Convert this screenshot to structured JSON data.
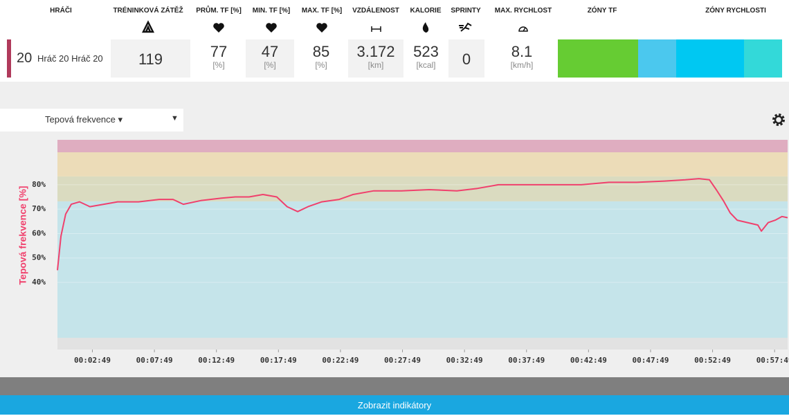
{
  "table": {
    "headers": [
      "HRÁČI",
      "TRÉNINKOVÁ ZÁTĚŽ",
      "PRŮM. TF [%]",
      "MIN. TF [%]",
      "MAX. TF [%]",
      "VZDÁLENOST",
      "KALORIE",
      "SPRINTY",
      "MAX. RYCHLOST",
      "ZÓNY TF",
      "ZÓNY RYCHLOSTI"
    ],
    "row": {
      "number": "20",
      "player": "Hráč 20 Hráč 20",
      "cells": [
        {
          "value": "119"
        },
        {
          "value": "77",
          "unit": "[%]"
        },
        {
          "value": "47",
          "unit": "[%]"
        },
        {
          "value": "85",
          "unit": "[%]"
        },
        {
          "value": "3.172",
          "unit": "[km]"
        },
        {
          "value": "523",
          "unit": "[kcal]"
        },
        {
          "value": "0"
        },
        {
          "value": "8.1",
          "unit": "[km/h]"
        }
      ]
    }
  },
  "metric_selector": "Tepová frekvence",
  "button": "Zobrazit indikátory",
  "chart_data": {
    "type": "line",
    "ylabel": "Tepová frekvence [%]",
    "xlim": [
      0,
      3532
    ],
    "ylim": [
      12.5,
      98.4
    ],
    "xticks": [
      {
        "value": 169,
        "label": "00:02:49"
      },
      {
        "value": 469,
        "label": "00:07:49"
      },
      {
        "value": 769,
        "label": "00:12:49"
      },
      {
        "value": 1069,
        "label": "00:17:49"
      },
      {
        "value": 1369,
        "label": "00:22:49"
      },
      {
        "value": 1669,
        "label": "00:27:49"
      },
      {
        "value": 1969,
        "label": "00:32:49"
      },
      {
        "value": 2269,
        "label": "00:37:49"
      },
      {
        "value": 2569,
        "label": "00:42:49"
      },
      {
        "value": 2869,
        "label": "00:47:49"
      },
      {
        "value": 3169,
        "label": "00:52:49"
      },
      {
        "value": 3469,
        "label": "00:57:49"
      }
    ],
    "yticks": [
      {
        "value": 40,
        "label": "40%"
      },
      {
        "value": 50,
        "label": "50%"
      },
      {
        "value": 60,
        "label": "60%"
      },
      {
        "value": 70,
        "label": "70%"
      },
      {
        "value": 80,
        "label": "80%"
      }
    ],
    "bands": [
      {
        "from": 12.5,
        "to": 17.3,
        "color": "#e2e2e2"
      },
      {
        "from": 17.3,
        "to": 73.2,
        "color": "#c5e4ea"
      },
      {
        "from": 73.2,
        "to": 83.4,
        "color": "#dadbc0"
      },
      {
        "from": 83.4,
        "to": 93.3,
        "color": "#ecdcb8"
      },
      {
        "from": 93.3,
        "to": 98.4,
        "color": "#dfadc0"
      }
    ],
    "series": [
      {
        "color": "#f0406c",
        "x": [
          0,
          17,
          40,
          67,
          107,
          157,
          224,
          291,
          392,
          492,
          559,
          609,
          693,
          793,
          860,
          927,
          994,
          1061,
          1111,
          1162,
          1212,
          1279,
          1363,
          1430,
          1530,
          1664,
          1798,
          1932,
          2032,
          2133,
          2266,
          2400,
          2534,
          2668,
          2802,
          2936,
          3037,
          3103,
          3154,
          3187,
          3221,
          3254,
          3288,
          3338,
          3388,
          3405,
          3438,
          3472,
          3505,
          3532
        ],
        "values": [
          45,
          59,
          68,
          72,
          73,
          71,
          72,
          73,
          73,
          74,
          74,
          72,
          73.5,
          74.5,
          75,
          75,
          76,
          75,
          71,
          69,
          71,
          73,
          74,
          76,
          77.5,
          77.5,
          78,
          77.5,
          78.5,
          80,
          80,
          80,
          80,
          81,
          81,
          81.5,
          82,
          82.5,
          82,
          78,
          73.5,
          68.5,
          65.5,
          64.5,
          63.5,
          61,
          64.5,
          65.5,
          67,
          66.5
        ]
      }
    ]
  }
}
